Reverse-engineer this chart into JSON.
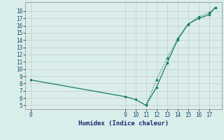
{
  "xlabel": "Humidex (Indice chaleur)",
  "bg_color": "#d9eeea",
  "grid_color": "#c8c8c8",
  "grid_color_major": "#c8c8c8",
  "line_color": "#1a7a6e",
  "line1_x": [
    0,
    9,
    10,
    11,
    12,
    13,
    14,
    15,
    16,
    17,
    17.6
  ],
  "line1_y": [
    8.5,
    6.2,
    5.8,
    5.0,
    7.5,
    10.8,
    14.0,
    16.2,
    17.0,
    17.5,
    18.5
  ],
  "line2_x": [
    11,
    12,
    13,
    14,
    15,
    16,
    17,
    17.6
  ],
  "line2_y": [
    5.0,
    8.5,
    11.5,
    14.2,
    16.2,
    17.2,
    17.8,
    18.5
  ],
  "xlim": [
    -0.5,
    18.2
  ],
  "ylim": [
    4.5,
    19.2
  ],
  "xticks": [
    0,
    9,
    10,
    11,
    12,
    13,
    14,
    15,
    16,
    17
  ],
  "yticks": [
    5,
    6,
    7,
    8,
    9,
    10,
    11,
    12,
    13,
    14,
    15,
    16,
    17,
    18
  ],
  "marker1_x": [
    0,
    9,
    10,
    11,
    12,
    13,
    14,
    15,
    16,
    17,
    17.6
  ],
  "marker1_y": [
    8.5,
    6.2,
    5.8,
    5.0,
    7.5,
    10.8,
    14.0,
    16.2,
    17.0,
    17.5,
    18.5
  ],
  "marker2_x": [
    11,
    12,
    13,
    14,
    15,
    16,
    17,
    17.6
  ],
  "marker2_y": [
    5.0,
    8.5,
    11.5,
    14.2,
    16.2,
    17.2,
    17.8,
    18.5
  ]
}
